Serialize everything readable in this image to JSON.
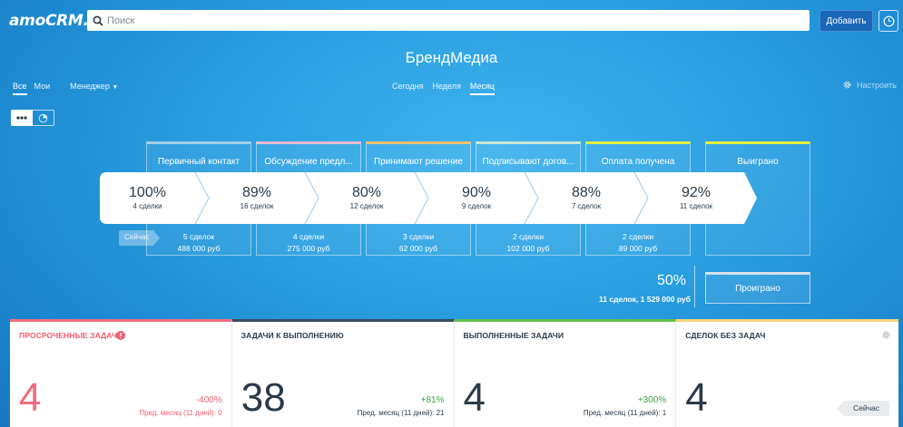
{
  "header": {
    "logo": "amoCRM.",
    "search_placeholder": "Поиск",
    "add_button": "Добавить"
  },
  "title": "БрендМедиа",
  "filters": {
    "all": "Все",
    "mine": "Мои",
    "manager": "Менеджер"
  },
  "periods": {
    "today": "Сегодня",
    "week": "Неделя",
    "month": "Месяц"
  },
  "settings_label": "Настроить",
  "stages": [
    {
      "title": "Первичный контакт",
      "deals": "5 сделок",
      "sum": "488 000 руб",
      "color": "#a3cfe8"
    },
    {
      "title": "Обсуждение предл...",
      "deals": "4 сделки",
      "sum": "275 000 руб",
      "color": "#f2b9d2"
    },
    {
      "title": "Принимают решение",
      "deals": "3 сделки",
      "sum": "62 000 руб",
      "color": "#f5c16a"
    },
    {
      "title": "Подписывают догов...",
      "deals": "2 сделки",
      "sum": "102 000 руб",
      "color": "#c9e7d9"
    },
    {
      "title": "Оплата получена",
      "deals": "2 сделки",
      "sum": "89 000 руб",
      "color": "#e4ef3d"
    }
  ],
  "won_label": "Выиграно",
  "lost_label": "Проиграно",
  "funnel": [
    {
      "pct": "100%",
      "count": "4 сделки"
    },
    {
      "pct": "89%",
      "count": "16 сделок"
    },
    {
      "pct": "80%",
      "count": "12 сделок"
    },
    {
      "pct": "90%",
      "count": "9 сделок"
    },
    {
      "pct": "88%",
      "count": "7 сделок"
    },
    {
      "pct": "92%",
      "count": "11 сделок"
    }
  ],
  "now_label": "Сейчас",
  "lost_stats": {
    "pct": "50%",
    "info": "11 сделок, 1 529 000 руб"
  },
  "tasks": [
    {
      "title": "ПРОСРОЧЕННЫЕ ЗАДАЧИ",
      "value": "4",
      "delta": "-400%",
      "prev": "Пред. месяц (11 дней): 0",
      "color": "#f26d7d",
      "delta_color": "#f25d6d"
    },
    {
      "title": "ЗАДАЧИ К ВЫПОЛНЕНИЮ",
      "value": "38",
      "delta": "+81%",
      "prev": "Пред. месяц (11 дней): 21",
      "color": "#3b4c5c",
      "delta_color": "#39a845"
    },
    {
      "title": "ВЫПОЛНЕННЫЕ ЗАДАЧИ",
      "value": "4",
      "delta": "+300%",
      "prev": "Пред. месяц (11 дней): 1",
      "color": "#5fc24a",
      "delta_color": "#39a845"
    },
    {
      "title": "СДЕЛОК БЕЗ ЗАДАЧ",
      "value": "4",
      "color": "#f3d77a"
    }
  ],
  "now_button": "Сейчас"
}
